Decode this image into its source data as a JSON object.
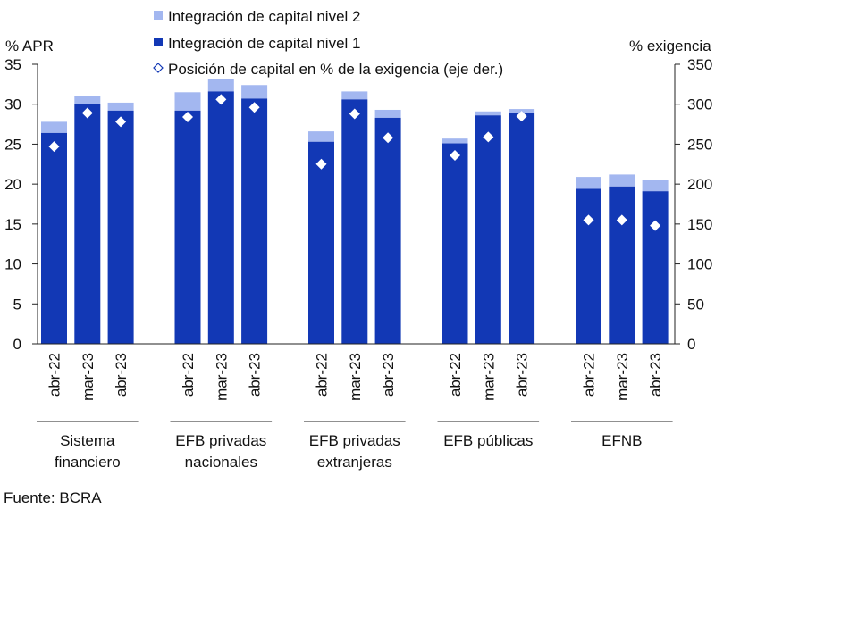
{
  "chart_data": {
    "type": "bar",
    "stacked": true,
    "left_axis": {
      "label": "% APR",
      "ylim": [
        0,
        35
      ],
      "ticks": [
        "0",
        "5",
        "10",
        "15",
        "20",
        "25",
        "30",
        "35"
      ]
    },
    "right_axis": {
      "label": "% exigencia",
      "ylim": [
        0,
        350
      ],
      "ticks": [
        "0",
        "50",
        "100",
        "150",
        "200",
        "250",
        "300",
        "350"
      ]
    },
    "groups": [
      {
        "name": "Sistema financiero",
        "lines": [
          "Sistema",
          "financiero"
        ]
      },
      {
        "name": "EFB privadas nacionales",
        "lines": [
          "EFB privadas",
          "nacionales"
        ]
      },
      {
        "name": "EFB privadas extranjeras",
        "lines": [
          "EFB privadas",
          "extranjeras"
        ]
      },
      {
        "name": "EFB públicas",
        "lines": [
          "EFB públicas"
        ]
      },
      {
        "name": "EFNB",
        "lines": [
          "EFNB"
        ]
      }
    ],
    "categories": [
      "abr-22",
      "mar-23",
      "abr-23"
    ],
    "series": [
      {
        "name": "Integración de capital nivel 1",
        "axis": "left",
        "color": "#1238b5",
        "values": [
          [
            26.4,
            30.0,
            29.2
          ],
          [
            29.2,
            31.6,
            30.7
          ],
          [
            25.3,
            30.6,
            28.3
          ],
          [
            25.1,
            28.6,
            28.9
          ],
          [
            19.4,
            19.7,
            19.1
          ]
        ]
      },
      {
        "name": "Integración de capital nivel 2",
        "axis": "left",
        "color": "#a3b7f0",
        "values": [
          [
            1.4,
            1.0,
            1.0
          ],
          [
            2.3,
            1.6,
            1.7
          ],
          [
            1.3,
            1.0,
            1.0
          ],
          [
            0.6,
            0.5,
            0.5
          ],
          [
            1.5,
            1.5,
            1.4
          ]
        ]
      },
      {
        "name": "Posición de capital en % de la exigencia (eje der.)",
        "axis": "right",
        "marker": "diamond",
        "values": [
          [
            247,
            289,
            278
          ],
          [
            284,
            306,
            296
          ],
          [
            225,
            288,
            258
          ],
          [
            236,
            259,
            285
          ],
          [
            155,
            155,
            148
          ]
        ]
      }
    ],
    "legend_position": "top-center",
    "grid": false
  },
  "source_note": "Fuente: BCRA"
}
